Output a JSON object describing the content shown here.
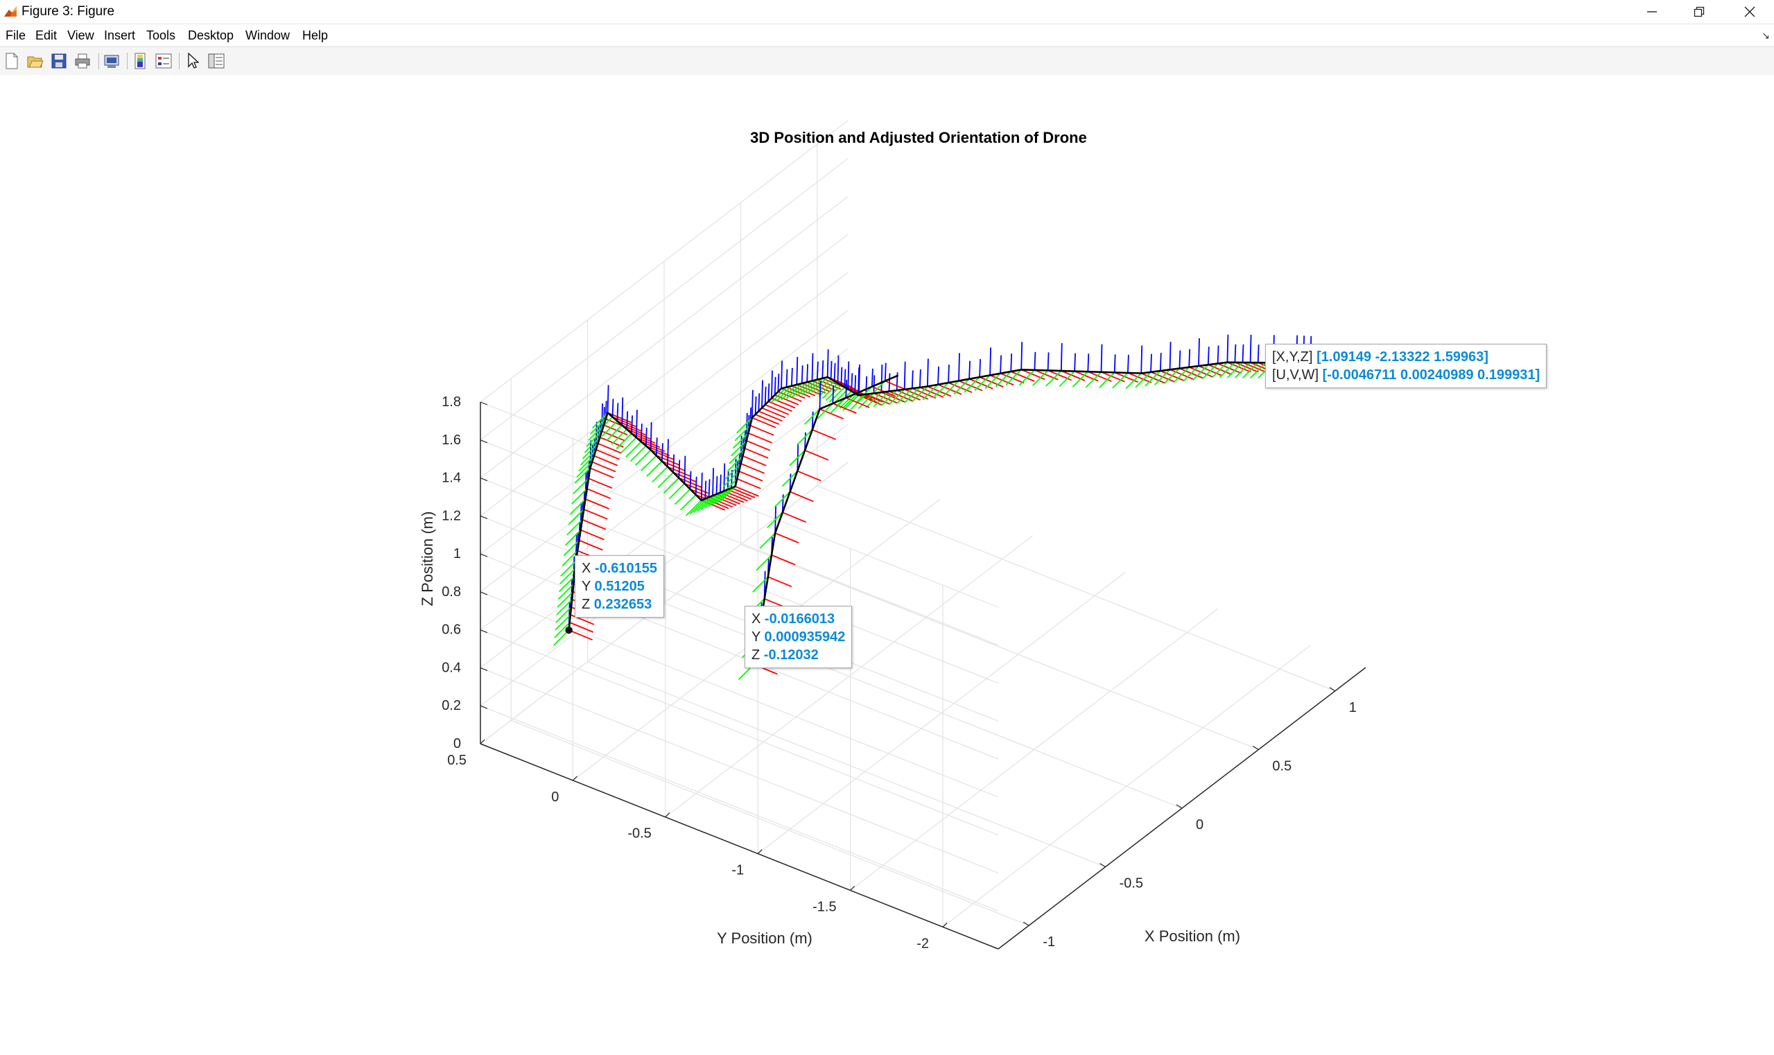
{
  "window": {
    "title": "Figure 3: Figure",
    "controls": {
      "minimize_icon": "minimize-icon",
      "restore_icon": "restore-icon",
      "close_icon": "close-icon"
    }
  },
  "menu": {
    "items": [
      "File",
      "Edit",
      "View",
      "Insert",
      "Tools",
      "Desktop",
      "Window",
      "Help"
    ]
  },
  "toolbar": {
    "icons": [
      "new-figure-icon",
      "open-file-icon",
      "save-icon",
      "print-icon",
      "print-preview-icon",
      "colorbar-icon",
      "legend-icon",
      "pointer-icon",
      "property-inspector-icon"
    ]
  },
  "colors": {
    "x_axis_arrow": "#ff0000",
    "y_axis_arrow": "#00ff00",
    "z_axis_arrow": "#0000ff",
    "trajectory": "#000000",
    "datatip_value": "#0b8bd6"
  },
  "chart_data": {
    "type": "3d-quiver",
    "title": "3D Position and Adjusted Orientation of Drone",
    "xlabel": "X Position (m)",
    "ylabel": "Y Position (m)",
    "zlabel": "Z Position (m)",
    "xlim": [
      -1.2,
      1.2
    ],
    "ylim": [
      -2.3,
      0.5
    ],
    "zlim": [
      0,
      1.8
    ],
    "xticks": [
      "-1",
      "-0.5",
      "0",
      "0.5",
      "1"
    ],
    "yticks": [
      "0.5",
      "0",
      "-0.5",
      "-1",
      "-1.5",
      "-2"
    ],
    "zticks": [
      "0",
      "0.2",
      "0.4",
      "0.6",
      "0.8",
      "1",
      "1.2",
      "1.4",
      "1.6",
      "1.8"
    ],
    "grid": true,
    "series": [
      {
        "x": [
          -0.61,
          -0.6,
          -0.58,
          -0.55,
          -0.45,
          -0.3,
          -0.2,
          -0.15,
          -0.08,
          -0.02,
          0.0,
          0.15,
          0.4,
          0.7,
          0.9,
          1.05,
          1.09
        ],
        "y": [
          0.51,
          0.48,
          0.42,
          0.35,
          0.2,
          0.05,
          -0.05,
          -0.1,
          -0.2,
          -0.4,
          -0.55,
          -0.8,
          -1.1,
          -1.5,
          -1.8,
          -2.05,
          -2.13
        ],
        "z": [
          0.23,
          0.6,
          1.1,
          1.4,
          1.2,
          0.9,
          0.95,
          1.3,
          1.45,
          1.55,
          1.5,
          1.55,
          1.6,
          1.55,
          1.6,
          1.6,
          1.6
        ]
      },
      {
        "x": [
          -0.017,
          0.0,
          0.05,
          0.2
        ],
        "y": [
          0.001,
          -0.1,
          -0.3,
          -0.6
        ],
        "z": [
          -0.12,
          0.6,
          1.3,
          1.5
        ]
      }
    ],
    "datatips": [
      {
        "label_x": "X",
        "value_x": "-0.610155",
        "label_y": "Y",
        "value_y": "0.51205",
        "label_z": "Z",
        "value_z": "0.232653"
      },
      {
        "label_x": "X",
        "value_x": "-0.0166013",
        "label_y": "Y",
        "value_y": "0.000935942",
        "label_z": "Z",
        "value_z": "-0.12032"
      },
      {
        "label_xyz": "[X,Y,Z]",
        "value_xyz": "[1.09149 -2.13322 1.59963]",
        "label_uvw": "[U,V,W]",
        "value_uvw": "[-0.0046711 0.00240989 0.199931]"
      }
    ]
  }
}
